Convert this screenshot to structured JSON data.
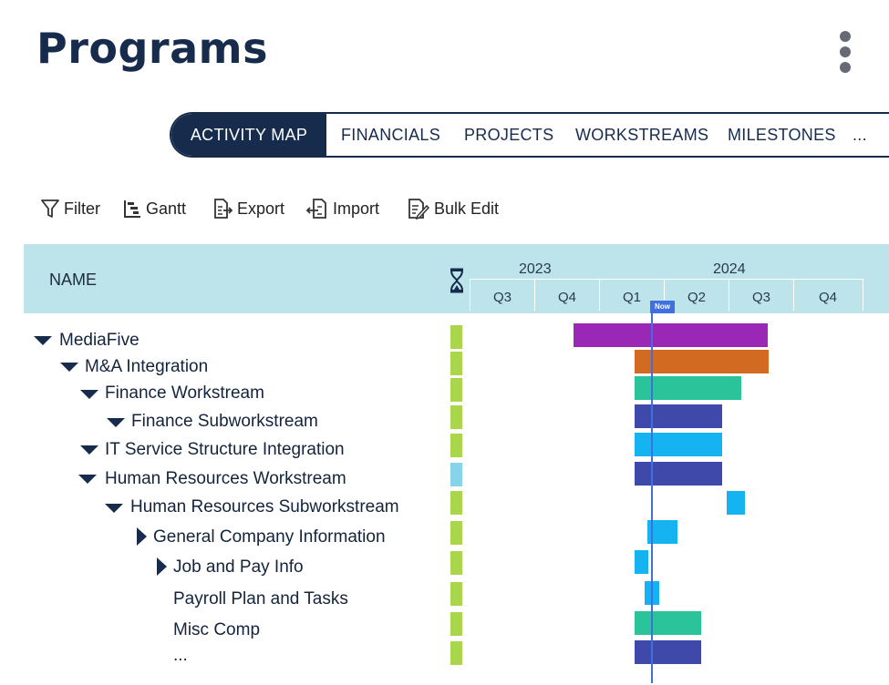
{
  "page": {
    "title": "Programs",
    "menu_icon": "more-vertical-icon"
  },
  "tabs": [
    {
      "label": "ACTIVITY MAP",
      "active": true
    },
    {
      "label": "FINANCIALS",
      "active": false
    },
    {
      "label": "PROJECTS",
      "active": false
    },
    {
      "label": "WORKSTREAMS",
      "active": false
    },
    {
      "label": "MILESTONES",
      "active": false
    },
    {
      "label": "...",
      "active": false
    }
  ],
  "toolbar": {
    "filter": {
      "label": "Filter",
      "icon": "filter-icon"
    },
    "gantt": {
      "label": "Gantt",
      "icon": "gantt-icon"
    },
    "export": {
      "label": "Export",
      "icon": "export-icon"
    },
    "import": {
      "label": "Import",
      "icon": "import-icon"
    },
    "bulk_edit": {
      "label": "Bulk Edit",
      "icon": "bulk-edit-icon"
    }
  },
  "grid_header": {
    "name_label": "NAME",
    "status_icon": "hourglass-icon",
    "years": [
      "2023",
      "2024"
    ],
    "quarters": [
      "Q3",
      "Q4",
      "Q1",
      "Q2",
      "Q3",
      "Q4"
    ],
    "now_label": "Now"
  },
  "colors": {
    "header_band": "#bde4ea",
    "navy": "#172b4d",
    "status_green": "#a9d64a",
    "status_lightblue": "#87d3ea",
    "now_line": "#3f6fe0",
    "purple": "#9b27b6",
    "orange": "#d36a22",
    "teal": "#2bc49a",
    "indigo": "#3e49a9",
    "skyblue": "#15b3f2"
  },
  "rows": [
    {
      "label": "MediaFive",
      "expand": "expanded",
      "status": "green",
      "bar": {
        "color": "purple"
      }
    },
    {
      "label": "M&A Integration",
      "expand": "expanded",
      "status": "green",
      "bar": {
        "color": "orange"
      }
    },
    {
      "label": "Finance Workstream",
      "expand": "expanded",
      "status": "green",
      "bar": {
        "color": "teal"
      }
    },
    {
      "label": "Finance Subworkstream",
      "expand": "expanded",
      "status": "green",
      "bar": {
        "color": "indigo"
      }
    },
    {
      "label": "IT Service Structure Integration",
      "expand": "expanded",
      "status": "green",
      "bar": {
        "color": "skyblue"
      }
    },
    {
      "label": "Human Resources Workstream",
      "expand": "expanded",
      "status": "lightblue",
      "bar": {
        "color": "indigo"
      }
    },
    {
      "label": "Human Resources Subworkstream",
      "expand": "expanded",
      "status": "green",
      "bar": {
        "color": "skyblue"
      }
    },
    {
      "label": "General Company Information",
      "expand": "collapsed",
      "status": "green",
      "bar": {
        "color": "skyblue"
      }
    },
    {
      "label": "Job and Pay Info",
      "expand": "collapsed",
      "status": "green",
      "bar": {
        "color": "skyblue"
      }
    },
    {
      "label": "Payroll Plan and Tasks",
      "expand": "none",
      "status": "green",
      "bar": {
        "color": "skyblue"
      }
    },
    {
      "label": "Misc Comp",
      "expand": "none",
      "status": "green",
      "bar": {
        "color": "teal"
      }
    },
    {
      "label": "...",
      "expand": "none",
      "status": "green",
      "bar": {
        "color": "indigo"
      }
    }
  ]
}
